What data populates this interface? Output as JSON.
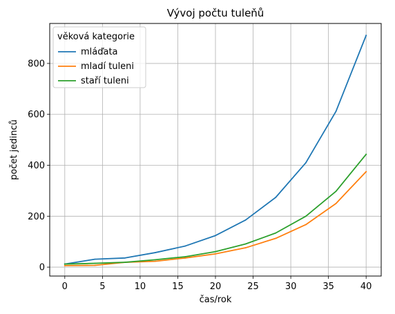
{
  "chart_data": {
    "type": "line",
    "title": "Vývoj počtu tuleňů",
    "xlabel": "čas/rok",
    "ylabel": "počet jedinců",
    "xlim": [
      -2,
      42
    ],
    "ylim": [
      -35,
      957
    ],
    "xticks": [
      0,
      5,
      10,
      15,
      20,
      25,
      30,
      35,
      40
    ],
    "yticks": [
      0,
      200,
      400,
      600,
      800
    ],
    "grid": true,
    "legend": {
      "title": "věková kategorie",
      "placement": "top-left"
    },
    "x": [
      0,
      4,
      8,
      12,
      16,
      20,
      24,
      28,
      32,
      36,
      40
    ],
    "series": [
      {
        "name": "mláďata",
        "color": "#1f77b4",
        "values": [
          12,
          31,
          36,
          57,
          83,
          124,
          185,
          274,
          410,
          612,
          910
        ]
      },
      {
        "name": "mladí tuleni",
        "color": "#ff7f0e",
        "values": [
          6,
          7,
          19,
          23,
          36,
          52,
          76,
          113,
          167,
          250,
          375
        ]
      },
      {
        "name": "staří tuleni",
        "color": "#2ca02c",
        "values": [
          12,
          15,
          19,
          29,
          41,
          61,
          91,
          134,
          200,
          298,
          443
        ]
      }
    ]
  }
}
